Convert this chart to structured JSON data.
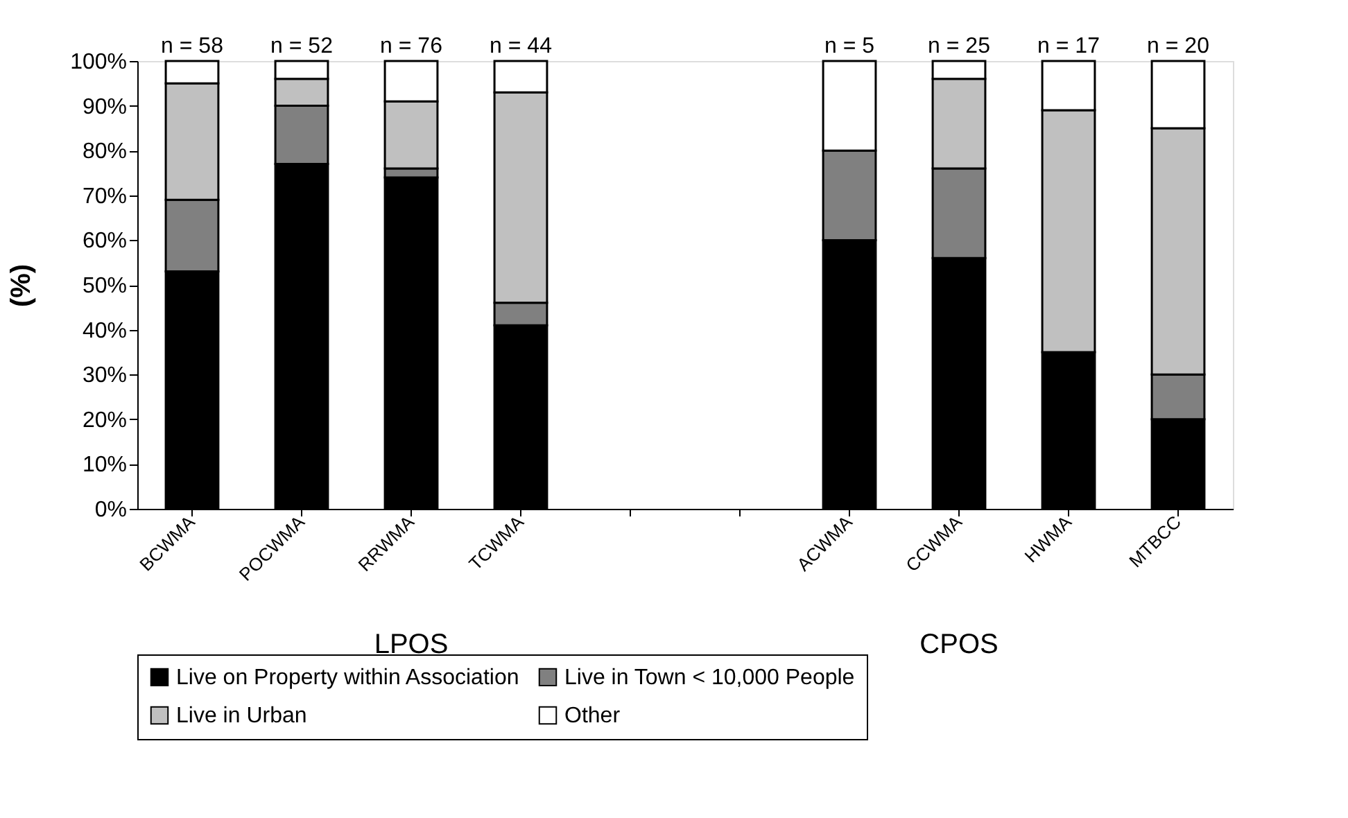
{
  "chart_data": {
    "type": "bar",
    "stacked": true,
    "ylabel": "(%)",
    "categories": [
      "BCWMA",
      "POCWMA",
      "RRWMA",
      "TCWMA",
      null,
      null,
      "ACWMA",
      "CCWMA",
      "HWMA",
      "MTBCC"
    ],
    "series": [
      {
        "name": "Live on Property within Association",
        "color": "#000000",
        "values": [
          53,
          77,
          74,
          41,
          null,
          null,
          60,
          56,
          35,
          20
        ]
      },
      {
        "name": "Live in Town < 10,000 People",
        "color": "#808080",
        "values": [
          16,
          13,
          2,
          5,
          null,
          null,
          20,
          20,
          null,
          10
        ]
      },
      {
        "name": "Live in Urban",
        "color": "#c0c0c0",
        "values": [
          26,
          6,
          15,
          47,
          null,
          null,
          null,
          20,
          54,
          55
        ]
      },
      {
        "name": "Other",
        "color": "#ffffff",
        "values": [
          5,
          4,
          9,
          7,
          null,
          null,
          20,
          4,
          11,
          15
        ]
      }
    ],
    "ylim": [
      0,
      100
    ],
    "yticks": [
      {
        "value": 0,
        "label": "0%"
      },
      {
        "value": 10,
        "label": "10%"
      },
      {
        "value": 20,
        "label": "20%"
      },
      {
        "value": 30,
        "label": "30%"
      },
      {
        "value": 40,
        "label": "40%"
      },
      {
        "value": 50,
        "label": "50%"
      },
      {
        "value": 60,
        "label": "60%"
      },
      {
        "value": 70,
        "label": "70%"
      },
      {
        "value": 80,
        "label": "80%"
      },
      {
        "value": 90,
        "label": "90%"
      },
      {
        "value": 100,
        "label": "100%"
      }
    ],
    "annotations": [
      "n = 58",
      "n = 52",
      "n = 76",
      "n = 44",
      "n = 5",
      "n = 25",
      "n = 17",
      "n = 20",
      "LPOS",
      "CPOS"
    ],
    "grid": false,
    "legend": "bottom"
  }
}
